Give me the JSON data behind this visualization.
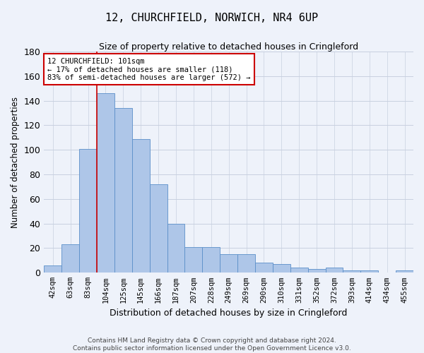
{
  "title": "12, CHURCHFIELD, NORWICH, NR4 6UP",
  "subtitle": "Size of property relative to detached houses in Cringleford",
  "xlabel": "Distribution of detached houses by size in Cringleford",
  "ylabel": "Number of detached properties",
  "bar_labels": [
    "42sqm",
    "63sqm",
    "83sqm",
    "104sqm",
    "125sqm",
    "145sqm",
    "166sqm",
    "187sqm",
    "207sqm",
    "228sqm",
    "249sqm",
    "269sqm",
    "290sqm",
    "310sqm",
    "331sqm",
    "352sqm",
    "372sqm",
    "393sqm",
    "414sqm",
    "434sqm",
    "455sqm"
  ],
  "bar_values": [
    6,
    23,
    101,
    146,
    134,
    109,
    72,
    40,
    21,
    21,
    15,
    15,
    8,
    7,
    4,
    3,
    4,
    2,
    2,
    0,
    2
  ],
  "bar_color": "#aec6e8",
  "bar_edge_color": "#5b8fc9",
  "annotation_text": "12 CHURCHFIELD: 101sqm\n← 17% of detached houses are smaller (118)\n83% of semi-detached houses are larger (572) →",
  "vline_x_index": 2.5,
  "vline_color": "#cc0000",
  "ylim": [
    0,
    180
  ],
  "yticks": [
    0,
    20,
    40,
    60,
    80,
    100,
    120,
    140,
    160,
    180
  ],
  "footer_line1": "Contains HM Land Registry data © Crown copyright and database right 2024.",
  "footer_line2": "Contains public sector information licensed under the Open Government Licence v3.0.",
  "bg_color": "#eef2fa",
  "plot_bg_color": "#eef2fa",
  "grid_color": "#c8d0e0"
}
